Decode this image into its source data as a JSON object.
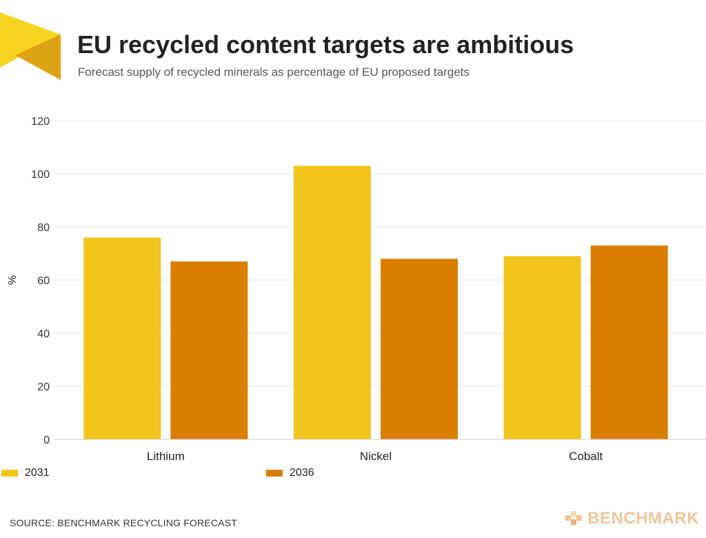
{
  "header": {
    "title": "EU recycled content targets are ambitious",
    "subtitle": "Forecast supply of recycled minerals as percentage of EU proposed targets"
  },
  "colors": {
    "series_2031": "#F2C51C",
    "series_2036": "#DB7F03",
    "gridline": "#e4e4e4",
    "brand": "#efc59a",
    "logo_light": "#F5D31F",
    "logo_dark": "#DDA312"
  },
  "chart_data": {
    "type": "bar",
    "title": "EU recycled content targets are ambitious",
    "subtitle": "Forecast supply of recycled minerals as percentage of EU proposed targets",
    "xlabel": "",
    "ylabel": "%",
    "ylim": [
      0,
      120
    ],
    "yticks": [
      0,
      20,
      40,
      60,
      80,
      100,
      120
    ],
    "grid": true,
    "legend_position": "bottom-left",
    "categories": [
      "Lithium",
      "Nickel",
      "Cobalt"
    ],
    "series": [
      {
        "name": "2031",
        "values": [
          76,
          103,
          69
        ]
      },
      {
        "name": "2036",
        "values": [
          67,
          68,
          73
        ]
      }
    ]
  },
  "footer": {
    "source": "SOURCE: BENCHMARK RECYCLING FORECAST",
    "brand": "BENCHMARK"
  },
  "icons": {
    "logo": "benchmark-triangle-icon",
    "brand_mark": "benchmark-b-icon"
  }
}
